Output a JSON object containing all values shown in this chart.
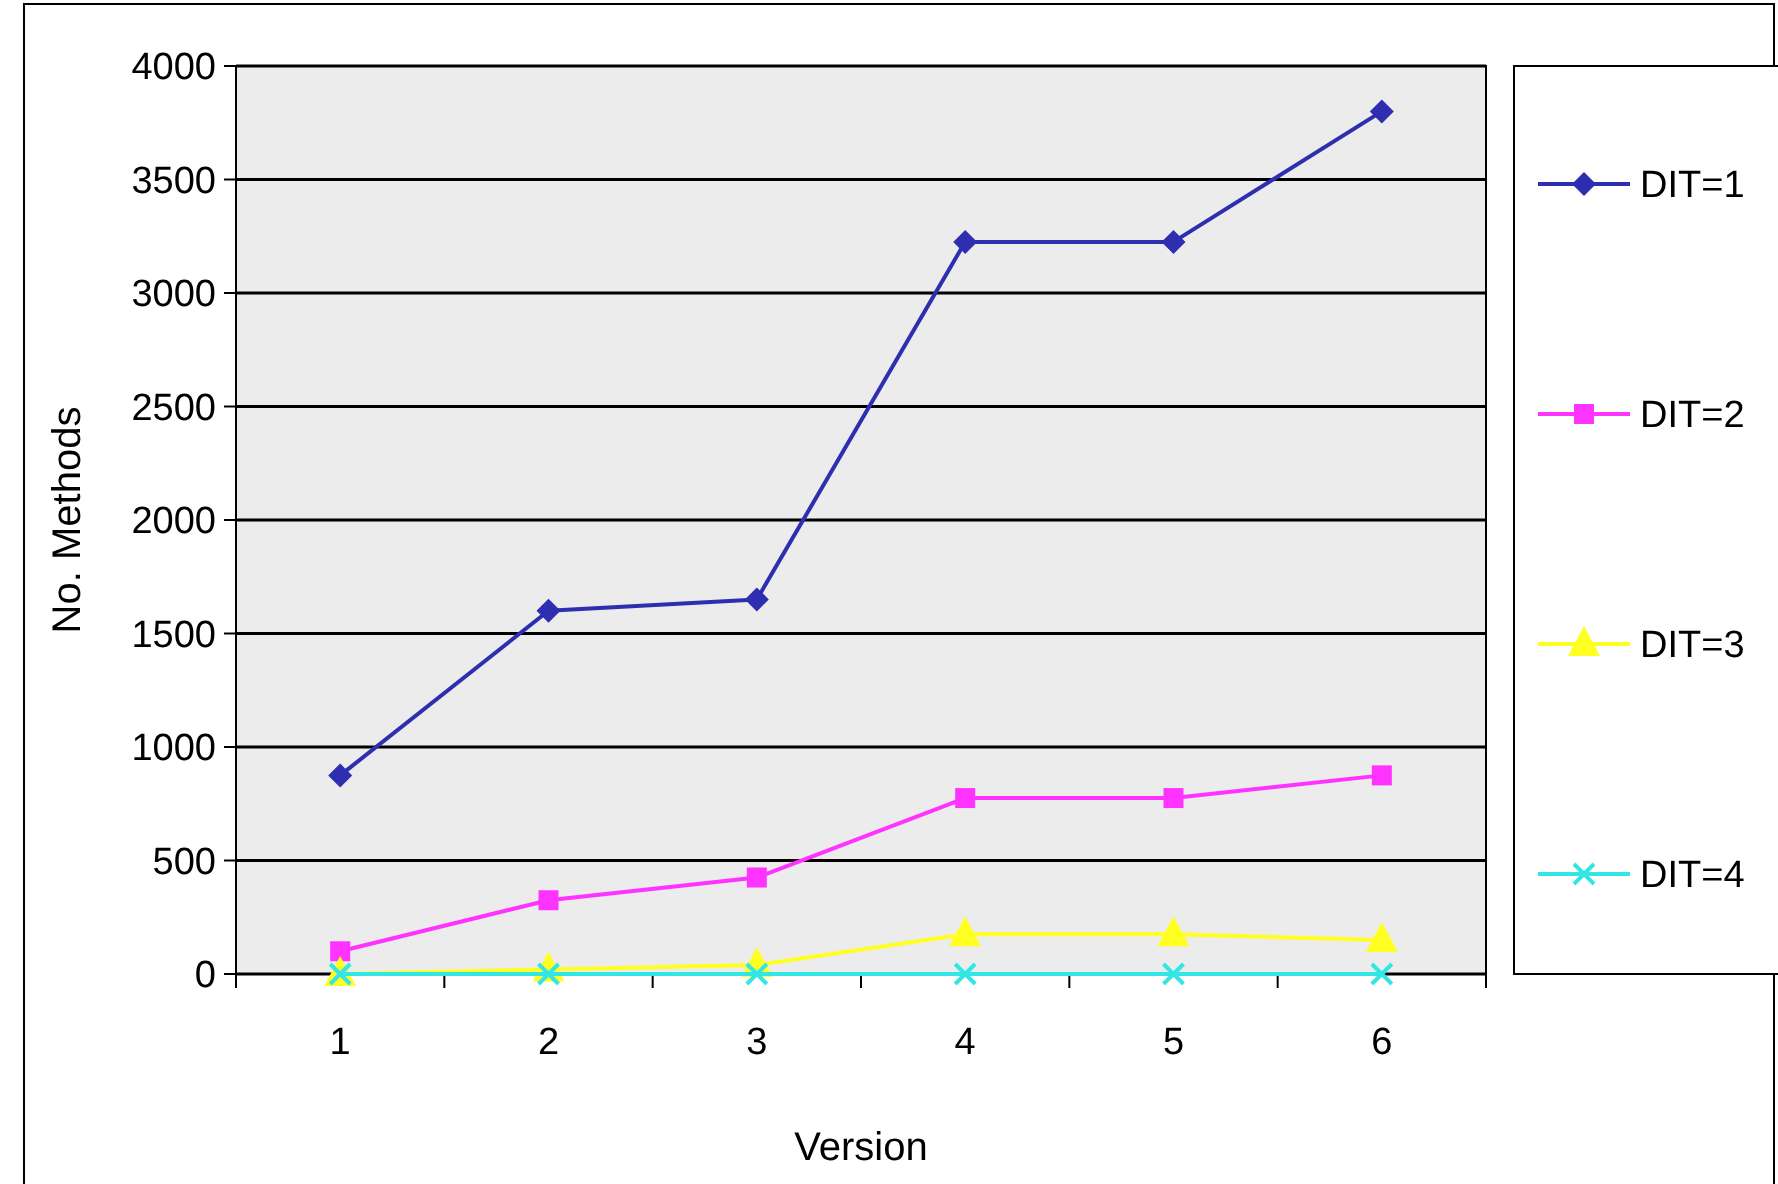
{
  "chart_data": {
    "type": "line",
    "xlabel": "Version",
    "ylabel": "No. Methods",
    "categories": [
      "1",
      "2",
      "3",
      "4",
      "5",
      "6"
    ],
    "ylim": [
      0,
      4000
    ],
    "yticks": [
      0,
      500,
      1000,
      1500,
      2000,
      2500,
      3000,
      3500,
      4000
    ],
    "grid": "y",
    "legend": "right",
    "series": [
      {
        "name": "DIT=1",
        "color": "#2e2eb0",
        "marker": "diamond",
        "values": [
          875,
          1600,
          1650,
          3225,
          3225,
          3800
        ]
      },
      {
        "name": "DIT=2",
        "color": "#ff33ff",
        "marker": "square",
        "values": [
          100,
          325,
          425,
          775,
          775,
          875
        ]
      },
      {
        "name": "DIT=3",
        "color": "#ffff22",
        "marker": "triangle",
        "values": [
          0,
          20,
          40,
          175,
          175,
          150
        ]
      },
      {
        "name": "DIT=4",
        "color": "#33e6e6",
        "marker": "cross",
        "values": [
          0,
          0,
          0,
          0,
          0,
          0
        ]
      }
    ]
  }
}
